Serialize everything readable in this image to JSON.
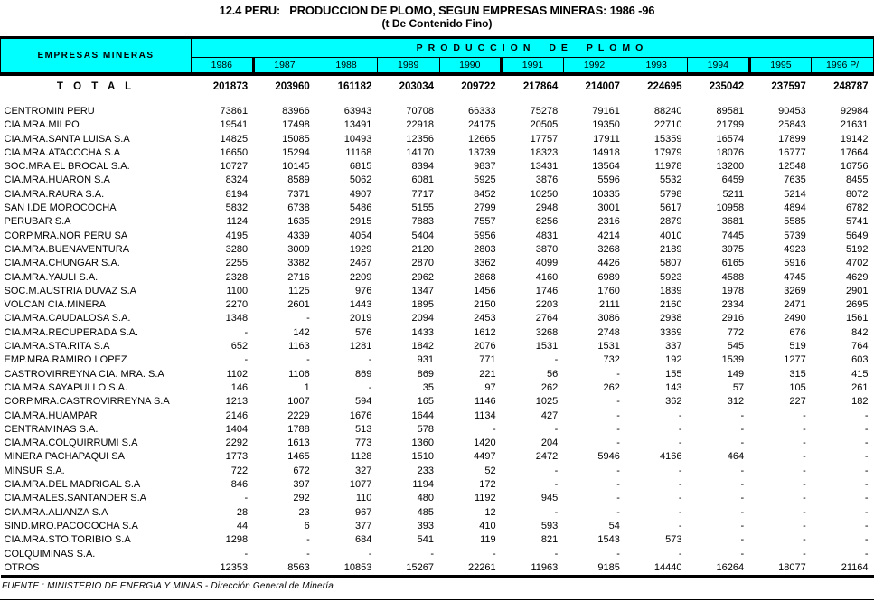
{
  "title": "12.4 PERU:   PRODUCCION DE PLOMO, SEGUN EMPRESAS MINERAS: 1986 -96",
  "subtitle": "(t De Contenido Fino)",
  "footer": "FUENTE : MINISTERIO DE ENERGIA Y MINAS  -  Dirección General de Minería",
  "colors": {
    "header_bg": "#00ffff",
    "border": "#000000",
    "background": "#ffffff",
    "text": "#000000"
  },
  "table": {
    "col_header_left": "EMPRESAS MINERAS",
    "group_header": "PRODUCCION DE PLOMO",
    "years": [
      "1986",
      "1987",
      "1988",
      "1989",
      "1990",
      "1991",
      "1992",
      "1993",
      "1994",
      "1995",
      "1996 P/"
    ],
    "total_label": "T O T A L",
    "total_values": [
      "201873",
      "203960",
      "161182",
      "203034",
      "209722",
      "217864",
      "214007",
      "224695",
      "235042",
      "237597",
      "248787"
    ],
    "rows": [
      {
        "name": "CENTROMIN PERU",
        "values": [
          "73861",
          "83966",
          "63943",
          "70708",
          "66333",
          "75278",
          "79161",
          "88240",
          "89581",
          "90453",
          "92984"
        ]
      },
      {
        "name": "CIA.MRA.MILPO",
        "values": [
          "19541",
          "17498",
          "13491",
          "22918",
          "24175",
          "20505",
          "19350",
          "22710",
          "21799",
          "25843",
          "21631"
        ]
      },
      {
        "name": "CIA.MRA.SANTA LUISA S.A",
        "values": [
          "14825",
          "15085",
          "10493",
          "12356",
          "12665",
          "17757",
          "17911",
          "15359",
          "16574",
          "17899",
          "19142"
        ]
      },
      {
        "name": "CIA.MRA.ATACOCHA S.A",
        "values": [
          "16650",
          "15294",
          "11168",
          "14170",
          "13739",
          "18323",
          "14918",
          "17979",
          "18076",
          "16777",
          "17664"
        ]
      },
      {
        "name": "SOC.MRA.EL BROCAL S.A.",
        "values": [
          "10727",
          "10145",
          "6815",
          "8394",
          "9837",
          "13431",
          "13564",
          "11978",
          "13200",
          "12548",
          "16756"
        ]
      },
      {
        "name": "CIA.MRA.HUARON S.A",
        "values": [
          "8324",
          "8589",
          "5062",
          "6081",
          "5925",
          "3876",
          "5596",
          "5532",
          "6459",
          "7635",
          "8455"
        ]
      },
      {
        "name": "CIA.MRA.RAURA S.A.",
        "values": [
          "8194",
          "7371",
          "4907",
          "7717",
          "8452",
          "10250",
          "10335",
          "5798",
          "5211",
          "5214",
          "8072"
        ]
      },
      {
        "name": "SAN I.DE MOROCOCHA",
        "values": [
          "5832",
          "6738",
          "5486",
          "5155",
          "2799",
          "2948",
          "3001",
          "5617",
          "10958",
          "4894",
          "6782"
        ]
      },
      {
        "name": "PERUBAR S.A",
        "values": [
          "1124",
          "1635",
          "2915",
          "7883",
          "7557",
          "8256",
          "2316",
          "2879",
          "3681",
          "5585",
          "5741"
        ]
      },
      {
        "name": "CORP.MRA.NOR PERU SA",
        "values": [
          "4195",
          "4339",
          "4054",
          "5404",
          "5956",
          "4831",
          "4214",
          "4010",
          "7445",
          "5739",
          "5649"
        ]
      },
      {
        "name": "CIA.MRA.BUENAVENTURA",
        "values": [
          "3280",
          "3009",
          "1929",
          "2120",
          "2803",
          "3870",
          "3268",
          "2189",
          "3975",
          "4923",
          "5192"
        ]
      },
      {
        "name": "CIA.MRA.CHUNGAR S.A.",
        "values": [
          "2255",
          "3382",
          "2467",
          "2870",
          "3362",
          "4099",
          "4426",
          "5807",
          "6165",
          "5916",
          "4702"
        ]
      },
      {
        "name": "CIA.MRA.YAULI S.A.",
        "values": [
          "2328",
          "2716",
          "2209",
          "2962",
          "2868",
          "4160",
          "6989",
          "5923",
          "4588",
          "4745",
          "4629"
        ]
      },
      {
        "name": "SOC.M.AUSTRIA DUVAZ S.A",
        "values": [
          "1100",
          "1125",
          "976",
          "1347",
          "1456",
          "1746",
          "1760",
          "1839",
          "1978",
          "3269",
          "2901"
        ]
      },
      {
        "name": "VOLCAN CIA.MINERA",
        "values": [
          "2270",
          "2601",
          "1443",
          "1895",
          "2150",
          "2203",
          "2111",
          "2160",
          "2334",
          "2471",
          "2695"
        ]
      },
      {
        "name": "CIA.MRA.CAUDALOSA S.A.",
        "values": [
          "1348",
          "-",
          "2019",
          "2094",
          "2453",
          "2764",
          "3086",
          "2938",
          "2916",
          "2490",
          "1561"
        ]
      },
      {
        "name": "CIA.MRA.RECUPERADA S.A.",
        "values": [
          "-",
          "142",
          "576",
          "1433",
          "1612",
          "3268",
          "2748",
          "3369",
          "772",
          "676",
          "842"
        ]
      },
      {
        "name": "CIA.MRA.STA.RITA S.A",
        "values": [
          "652",
          "1163",
          "1281",
          "1842",
          "2076",
          "1531",
          "1531",
          "337",
          "545",
          "519",
          "764"
        ]
      },
      {
        "name": "EMP.MRA.RAMIRO LOPEZ",
        "values": [
          "-",
          "-",
          "-",
          "931",
          "771",
          "-",
          "732",
          "192",
          "1539",
          "1277",
          "603"
        ]
      },
      {
        "name": "CASTROVIRREYNA CIA. MRA. S.A",
        "values": [
          "1102",
          "1106",
          "869",
          "869",
          "221",
          "56",
          "-",
          "155",
          "149",
          "315",
          "415"
        ]
      },
      {
        "name": "CIA.MRA.SAYAPULLO S.A.",
        "values": [
          "146",
          "1",
          "-",
          "35",
          "97",
          "262",
          "262",
          "143",
          "57",
          "105",
          "261"
        ]
      },
      {
        "name": "CORP.MRA.CASTROVIRREYNA S.A",
        "values": [
          "1213",
          "1007",
          "594",
          "165",
          "1146",
          "1025",
          "-",
          "362",
          "312",
          "227",
          "182"
        ]
      },
      {
        "name": "CIA.MRA.HUAMPAR",
        "values": [
          "2146",
          "2229",
          "1676",
          "1644",
          "1134",
          "427",
          "-",
          "-",
          "-",
          "-",
          "-"
        ]
      },
      {
        "name": "CENTRAMINAS S.A.",
        "values": [
          "1404",
          "1788",
          "513",
          "578",
          "-",
          "-",
          "-",
          "-",
          "-",
          "-",
          "-"
        ]
      },
      {
        "name": "CIA.MRA.COLQUIRRUMI S.A",
        "values": [
          "2292",
          "1613",
          "773",
          "1360",
          "1420",
          "204",
          "-",
          "-",
          "-",
          "-",
          "-"
        ]
      },
      {
        "name": "MINERA PACHAPAQUI SA",
        "values": [
          "1773",
          "1465",
          "1128",
          "1510",
          "4497",
          "2472",
          "5946",
          "4166",
          "464",
          "-",
          "-"
        ]
      },
      {
        "name": "MINSUR S.A.",
        "values": [
          "722",
          "672",
          "327",
          "233",
          "52",
          "-",
          "-",
          "-",
          "-",
          "-",
          "-"
        ]
      },
      {
        "name": "CIA.MRA.DEL MADRIGAL S.A",
        "values": [
          "846",
          "397",
          "1077",
          "1194",
          "172",
          "-",
          "-",
          "-",
          "-",
          "-",
          "-"
        ]
      },
      {
        "name": "CIA.MRALES.SANTANDER S.A",
        "values": [
          "-",
          "292",
          "110",
          "480",
          "1192",
          "945",
          "-",
          "-",
          "-",
          "-",
          "-"
        ]
      },
      {
        "name": "CIA.MRA.ALIANZA S.A",
        "values": [
          "28",
          "23",
          "967",
          "485",
          "12",
          "-",
          "-",
          "-",
          "-",
          "-",
          "-"
        ]
      },
      {
        "name": "SIND.MRO.PACOCOCHA S.A",
        "values": [
          "44",
          "6",
          "377",
          "393",
          "410",
          "593",
          "54",
          "-",
          "-",
          "-",
          "-"
        ]
      },
      {
        "name": "CIA.MRA.STO.TORIBIO S.A",
        "values": [
          "1298",
          "-",
          "684",
          "541",
          "119",
          "821",
          "1543",
          "573",
          "-",
          "-",
          "-"
        ]
      },
      {
        "name": "COLQUIMINAS S.A.",
        "values": [
          "-",
          "-",
          "-",
          "-",
          "-",
          "-",
          "-",
          "-",
          "-",
          "-",
          "-"
        ]
      },
      {
        "name": "OTROS",
        "values": [
          "12353",
          "8563",
          "10853",
          "15267",
          "22261",
          "11963",
          "9185",
          "14440",
          "16264",
          "18077",
          "21164"
        ]
      }
    ]
  }
}
